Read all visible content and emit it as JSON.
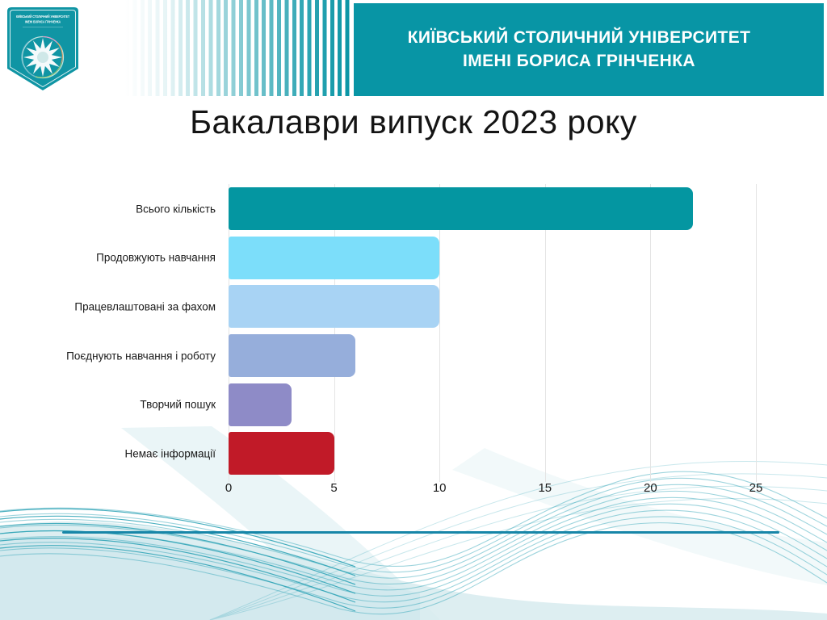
{
  "header": {
    "band_color": "#0895A5",
    "university_title_line1": "КИЇВСЬКИЙ СТОЛИЧНИЙ УНІВЕРСИТЕТ",
    "university_title_line2": "ІМЕНІ БОРИСА ГРІНЧЕНКА",
    "logo": {
      "text_line1": "КИЇВСЬКИЙ СТОЛИЧНИЙ УНІВЕРСИТЕТ",
      "text_line2": "ІМЕНІ БОРИСА ГРІНЧЕНКА"
    }
  },
  "slide": {
    "title": "Бакалаври випуск 2023 року"
  },
  "chart_data": {
    "type": "bar",
    "orientation": "horizontal",
    "title": "Бакалаври випуск 2023 року",
    "categories": [
      "Всього кількість",
      "Продовжують навчання",
      "Працевлаштовані за фахом",
      "Поєднують навчання і роботу",
      "Творчий пошук",
      "Немає інформації"
    ],
    "values": [
      22,
      10,
      10,
      6,
      3,
      5
    ],
    "bar_colors": [
      "#0496A1",
      "#7CDEFA",
      "#A8D3F4",
      "#96AEDB",
      "#8E8BC7",
      "#C11A28"
    ],
    "x_ticks": [
      0,
      5,
      10,
      15,
      20,
      25
    ],
    "xlim": [
      0,
      25
    ],
    "grid": true,
    "legend": false,
    "data_labels": false
  },
  "footer": {
    "accent_line_color": "#1786A8",
    "wave_color": "#2AA2B5"
  }
}
